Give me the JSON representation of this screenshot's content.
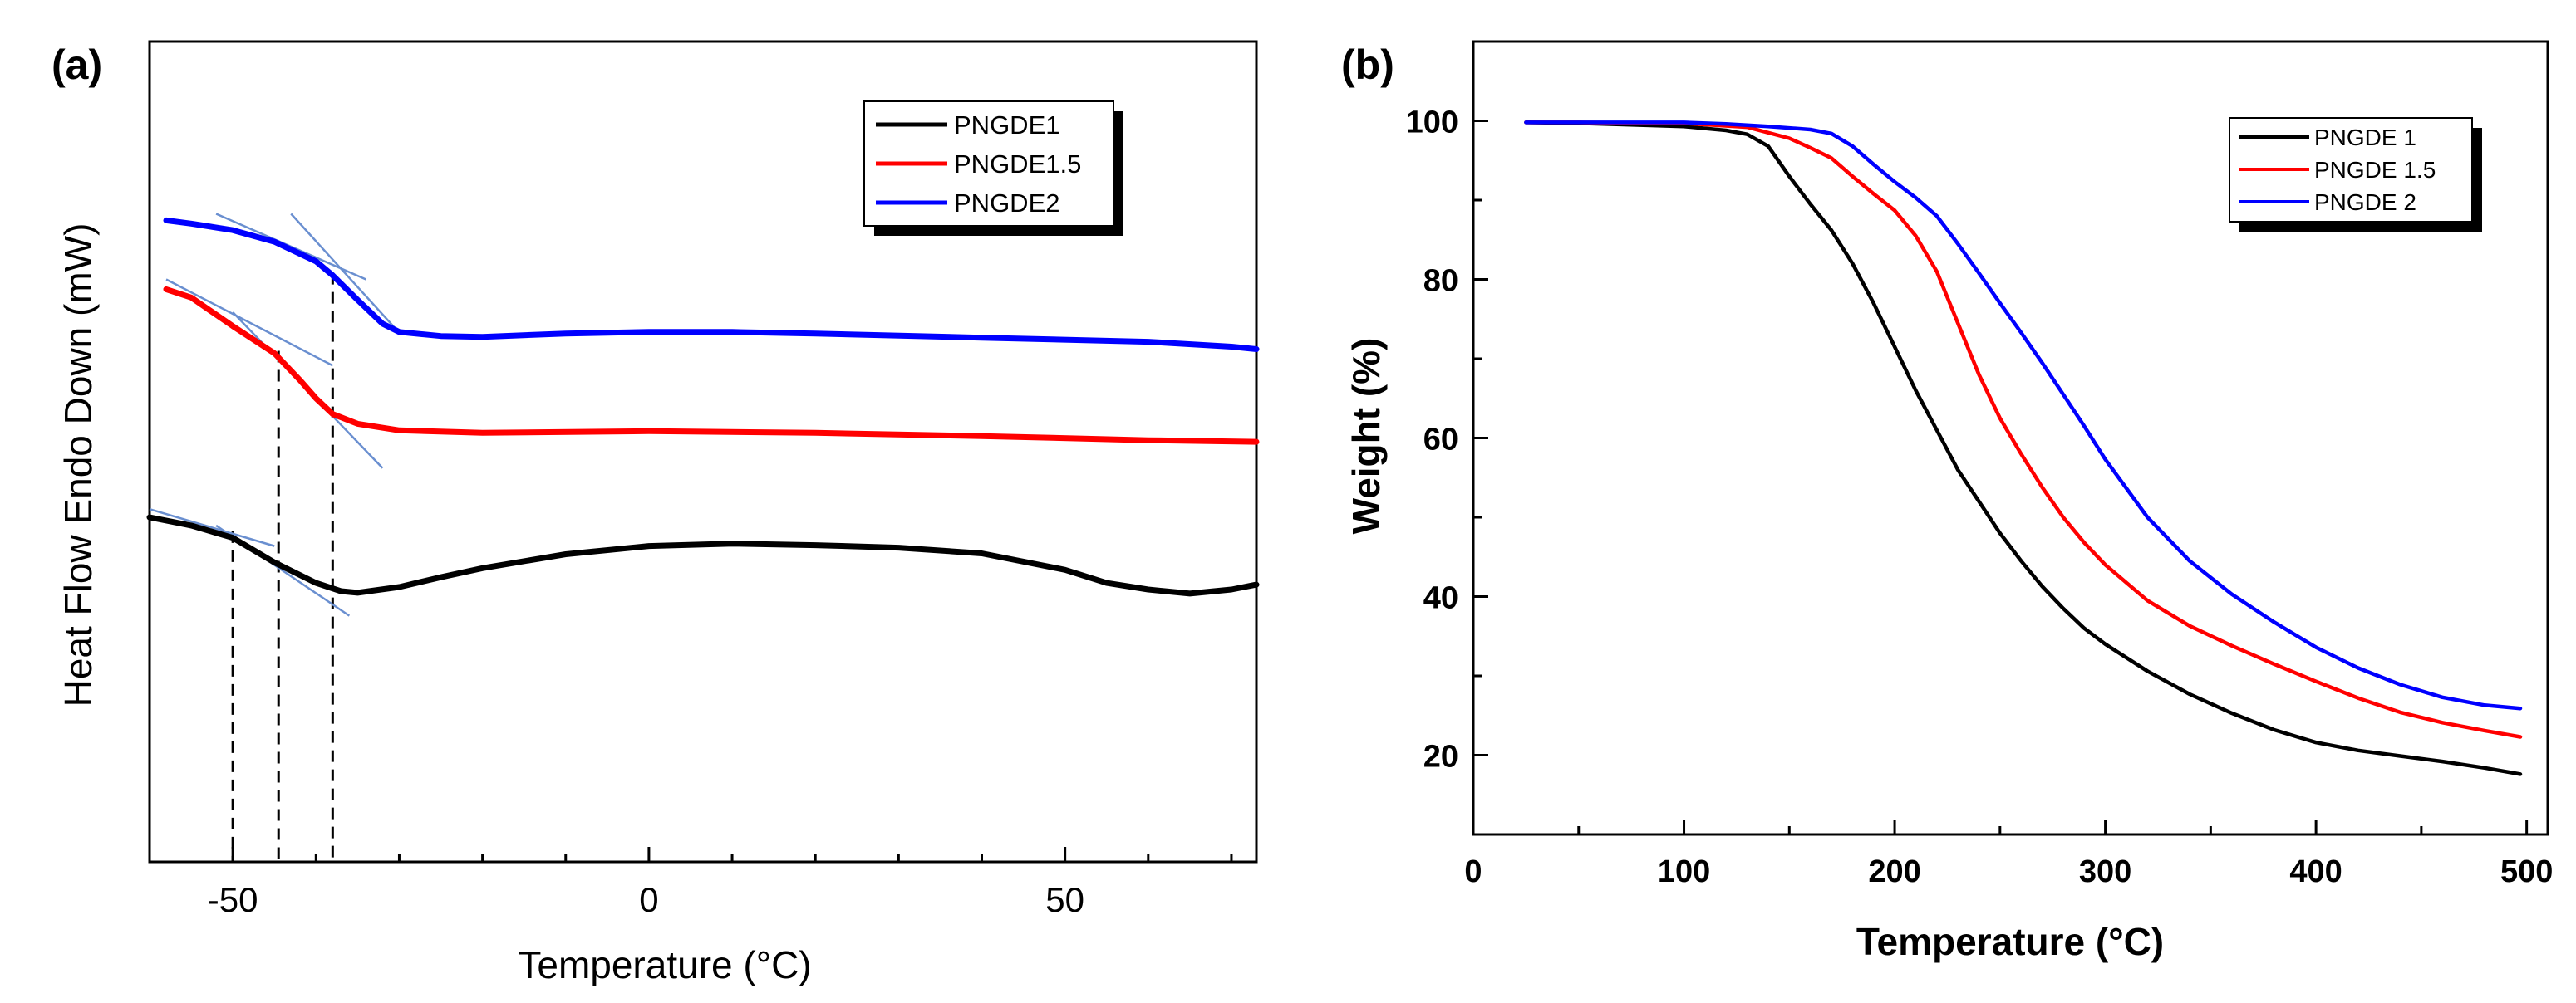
{
  "panels": {
    "a": {
      "label": "(a)"
    },
    "b": {
      "label": "(b)"
    }
  },
  "chart_data": [
    {
      "panel": "(a)",
      "type": "line",
      "title": "",
      "xlabel": "Temperature (°C)",
      "ylabel": "Heat Flow Endo Down (mW)",
      "xlim": [
        -60,
        73
      ],
      "ylim": [
        0,
        100
      ],
      "yticks_shown": false,
      "xticks": [
        -50,
        0,
        50
      ],
      "xtick_labels": [
        "-50",
        "0",
        "50"
      ],
      "legend": {
        "placement": "top-right",
        "entries": [
          "PNGDE1",
          "PNGDE1.5",
          "PNGDE2"
        ],
        "shadow": true
      },
      "series": [
        {
          "name": "PNGDE1",
          "color": "#000000",
          "x": [
            -60,
            -55,
            -50,
            -45,
            -40,
            -37,
            -35,
            -30,
            -25,
            -20,
            -10,
            0,
            10,
            20,
            30,
            40,
            50,
            55,
            60,
            65,
            70,
            73
          ],
          "y": [
            42.0,
            41.0,
            39.5,
            36.5,
            34.0,
            33.0,
            32.8,
            33.5,
            34.7,
            35.8,
            37.5,
            38.5,
            38.8,
            38.6,
            38.3,
            37.6,
            35.6,
            34.0,
            33.2,
            32.7,
            33.2,
            33.8
          ]
        },
        {
          "name": "PNGDE1.5",
          "color": "#ff0000",
          "x": [
            -58,
            -55,
            -50,
            -45,
            -42,
            -40,
            -38,
            -35,
            -30,
            -20,
            0,
            20,
            40,
            60,
            73
          ],
          "y": [
            69.8,
            68.8,
            65.3,
            62.0,
            58.8,
            56.5,
            54.6,
            53.4,
            52.6,
            52.3,
            52.5,
            52.3,
            51.9,
            51.4,
            51.2
          ]
        },
        {
          "name": "PNGDE2",
          "color": "#0000ff",
          "x": [
            -58,
            -55,
            -50,
            -45,
            -40,
            -38,
            -35,
            -32,
            -30,
            -25,
            -20,
            -10,
            0,
            10,
            20,
            40,
            60,
            70,
            73
          ],
          "y": [
            78.2,
            77.8,
            77.0,
            75.6,
            73.2,
            71.5,
            68.5,
            65.6,
            64.6,
            64.1,
            64.0,
            64.4,
            64.6,
            64.6,
            64.4,
            63.9,
            63.4,
            62.8,
            62.5
          ]
        }
      ],
      "annotations": {
        "onset_markers_x": [
          -50,
          -44.5,
          -38
        ]
      }
    },
    {
      "panel": "(b)",
      "type": "line",
      "title": "",
      "xlabel": "Temperature (°C)",
      "ylabel": "Weight (%)",
      "xlim": [
        0,
        510
      ],
      "ylim": [
        10,
        110
      ],
      "xticks": [
        0,
        100,
        200,
        300,
        400,
        500
      ],
      "yticks": [
        20,
        40,
        60,
        80,
        100
      ],
      "legend": {
        "placement": "top-right",
        "entries": [
          "PNGDE 1",
          "PNGDE 1.5",
          "PNGDE 2"
        ],
        "shadow": true
      },
      "series": [
        {
          "name": "PNGDE 1",
          "color": "#000000",
          "x": [
            25,
            50,
            100,
            120,
            130,
            140,
            150,
            160,
            170,
            180,
            190,
            200,
            210,
            220,
            230,
            240,
            250,
            260,
            270,
            280,
            290,
            300,
            320,
            340,
            360,
            380,
            400,
            420,
            440,
            460,
            480,
            497
          ],
          "y": [
            99.8,
            99.7,
            99.3,
            98.8,
            98.3,
            96.8,
            93.0,
            89.5,
            86.2,
            82.0,
            77.0,
            71.5,
            66.0,
            61.0,
            56.0,
            52.0,
            48.0,
            44.5,
            41.3,
            38.5,
            36.0,
            34.0,
            30.6,
            27.7,
            25.3,
            23.2,
            21.6,
            20.6,
            19.9,
            19.2,
            18.4,
            17.6
          ]
        },
        {
          "name": "PNGDE 1.5",
          "color": "#ff0000",
          "x": [
            25,
            50,
            100,
            130,
            150,
            160,
            170,
            180,
            190,
            200,
            210,
            220,
            230,
            240,
            250,
            260,
            270,
            280,
            290,
            300,
            320,
            340,
            360,
            380,
            400,
            420,
            440,
            460,
            480,
            497
          ],
          "y": [
            99.8,
            99.8,
            99.7,
            99.2,
            97.8,
            96.6,
            95.3,
            93.0,
            90.8,
            88.7,
            85.5,
            81.0,
            74.5,
            68.0,
            62.5,
            58.0,
            53.8,
            50.0,
            46.8,
            44.0,
            39.5,
            36.3,
            33.8,
            31.5,
            29.3,
            27.2,
            25.4,
            24.1,
            23.1,
            22.3
          ]
        },
        {
          "name": "PNGDE 2",
          "color": "#0000ff",
          "x": [
            25,
            50,
            100,
            120,
            140,
            160,
            170,
            180,
            190,
            200,
            210,
            220,
            230,
            240,
            250,
            260,
            270,
            280,
            290,
            300,
            320,
            340,
            360,
            380,
            400,
            420,
            440,
            460,
            480,
            497
          ],
          "y": [
            99.8,
            99.8,
            99.8,
            99.6,
            99.3,
            98.9,
            98.4,
            96.8,
            94.5,
            92.3,
            90.3,
            88.0,
            84.5,
            80.8,
            77.0,
            73.3,
            69.5,
            65.5,
            61.5,
            57.3,
            50.0,
            44.5,
            40.3,
            36.8,
            33.6,
            31.0,
            28.9,
            27.3,
            26.3,
            25.9
          ]
        }
      ]
    }
  ]
}
